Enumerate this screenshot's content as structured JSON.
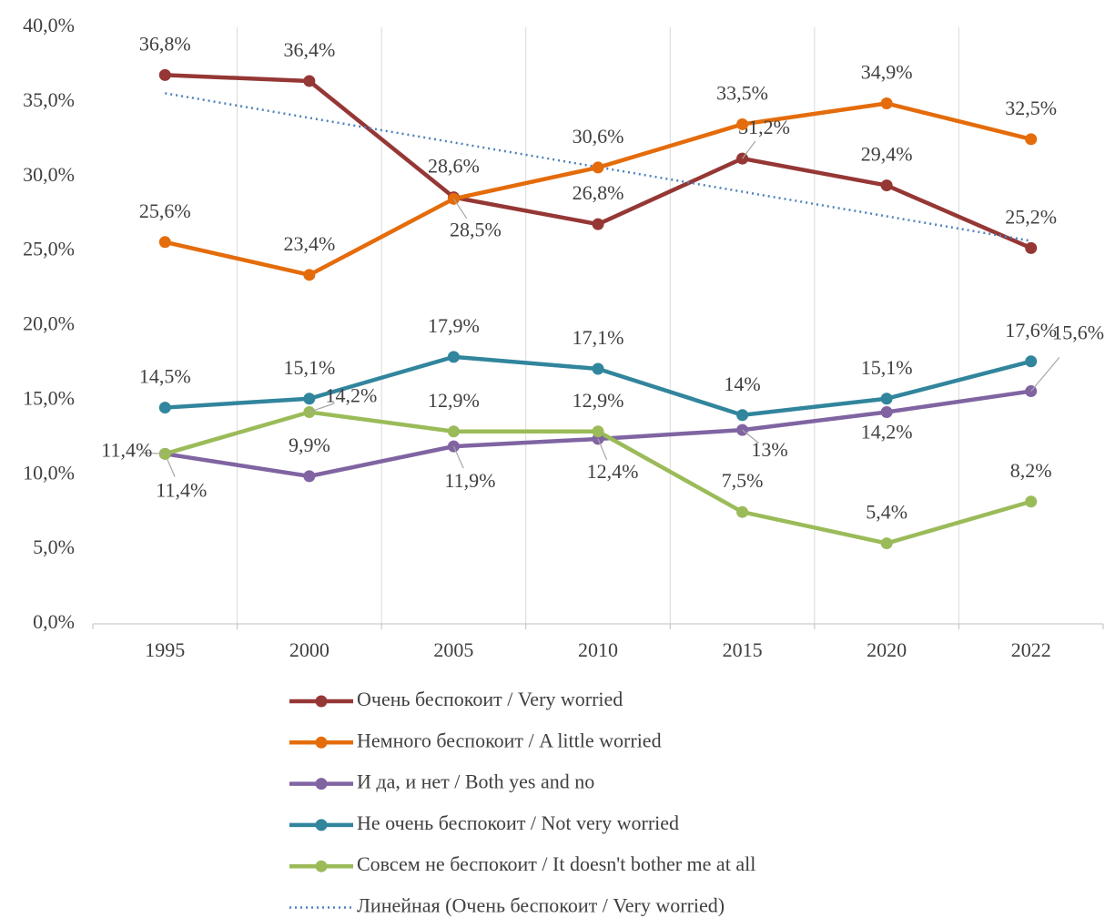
{
  "chart_data": {
    "type": "line",
    "categories": [
      "1995",
      "2000",
      "2005",
      "2010",
      "2015",
      "2020",
      "2022"
    ],
    "ylim": [
      0,
      40
    ],
    "yticks": [
      {
        "value": 0,
        "label": "0,0%"
      },
      {
        "value": 5,
        "label": "5,0%"
      },
      {
        "value": 10,
        "label": "10,0%"
      },
      {
        "value": 15,
        "label": "15,0%"
      },
      {
        "value": 20,
        "label": "20,0%"
      },
      {
        "value": 25,
        "label": "25,0%"
      },
      {
        "value": 30,
        "label": "30,0%"
      },
      {
        "value": 35,
        "label": "35,0%"
      },
      {
        "value": 40,
        "label": "40,0%"
      }
    ],
    "grid": true,
    "series": [
      {
        "name": "Очень беспокоит / Very worried",
        "color": "#953735",
        "values": [
          36.8,
          36.4,
          28.6,
          26.8,
          31.2,
          29.4,
          25.2
        ],
        "value_labels": [
          "36,8%",
          "36,4%",
          "28,6%",
          "26,8%",
          "31,2%",
          "29,4%",
          "25,2%"
        ]
      },
      {
        "name": "Немного беспокоит / A little worried",
        "color": "#e46c0a",
        "values": [
          25.6,
          23.4,
          28.5,
          30.6,
          33.5,
          34.9,
          32.5
        ],
        "value_labels": [
          "25,6%",
          "23,4%",
          "28,5%",
          "30,6%",
          "33,5%",
          "34,9%",
          "32,5%"
        ]
      },
      {
        "name": "И да, и нет / Both yes and no",
        "color": "#8064a2",
        "values": [
          11.4,
          9.9,
          11.9,
          12.4,
          13,
          14.2,
          15.6
        ],
        "value_labels": [
          "11,4%",
          "9,9%",
          "11,9%",
          "12,4%",
          "13%",
          "14,2%",
          "15,6%"
        ]
      },
      {
        "name": "Не очень беспокоит / Not very worried",
        "color": "#31859c",
        "values": [
          14.5,
          15.1,
          17.9,
          17.1,
          14,
          15.1,
          17.6
        ],
        "value_labels": [
          "14,5%",
          "15,1%",
          "17,9%",
          "17,1%",
          "14%",
          "15,1%",
          "17,6%"
        ]
      },
      {
        "name": "Совсем не беспокоит / It doesn't bother me at all",
        "color": "#9bbb59",
        "values": [
          11.4,
          14.2,
          12.9,
          12.9,
          7.5,
          5.4,
          8.2
        ],
        "value_labels": [
          "11,4%",
          "14,2%",
          "12,9%",
          "12,9%",
          "7,5%",
          "5,4%",
          "8,2%"
        ]
      }
    ],
    "trendline": {
      "name": "Линейная (Очень беспокоит / Very worried)",
      "color": "#4f81bd",
      "series": 0
    }
  }
}
